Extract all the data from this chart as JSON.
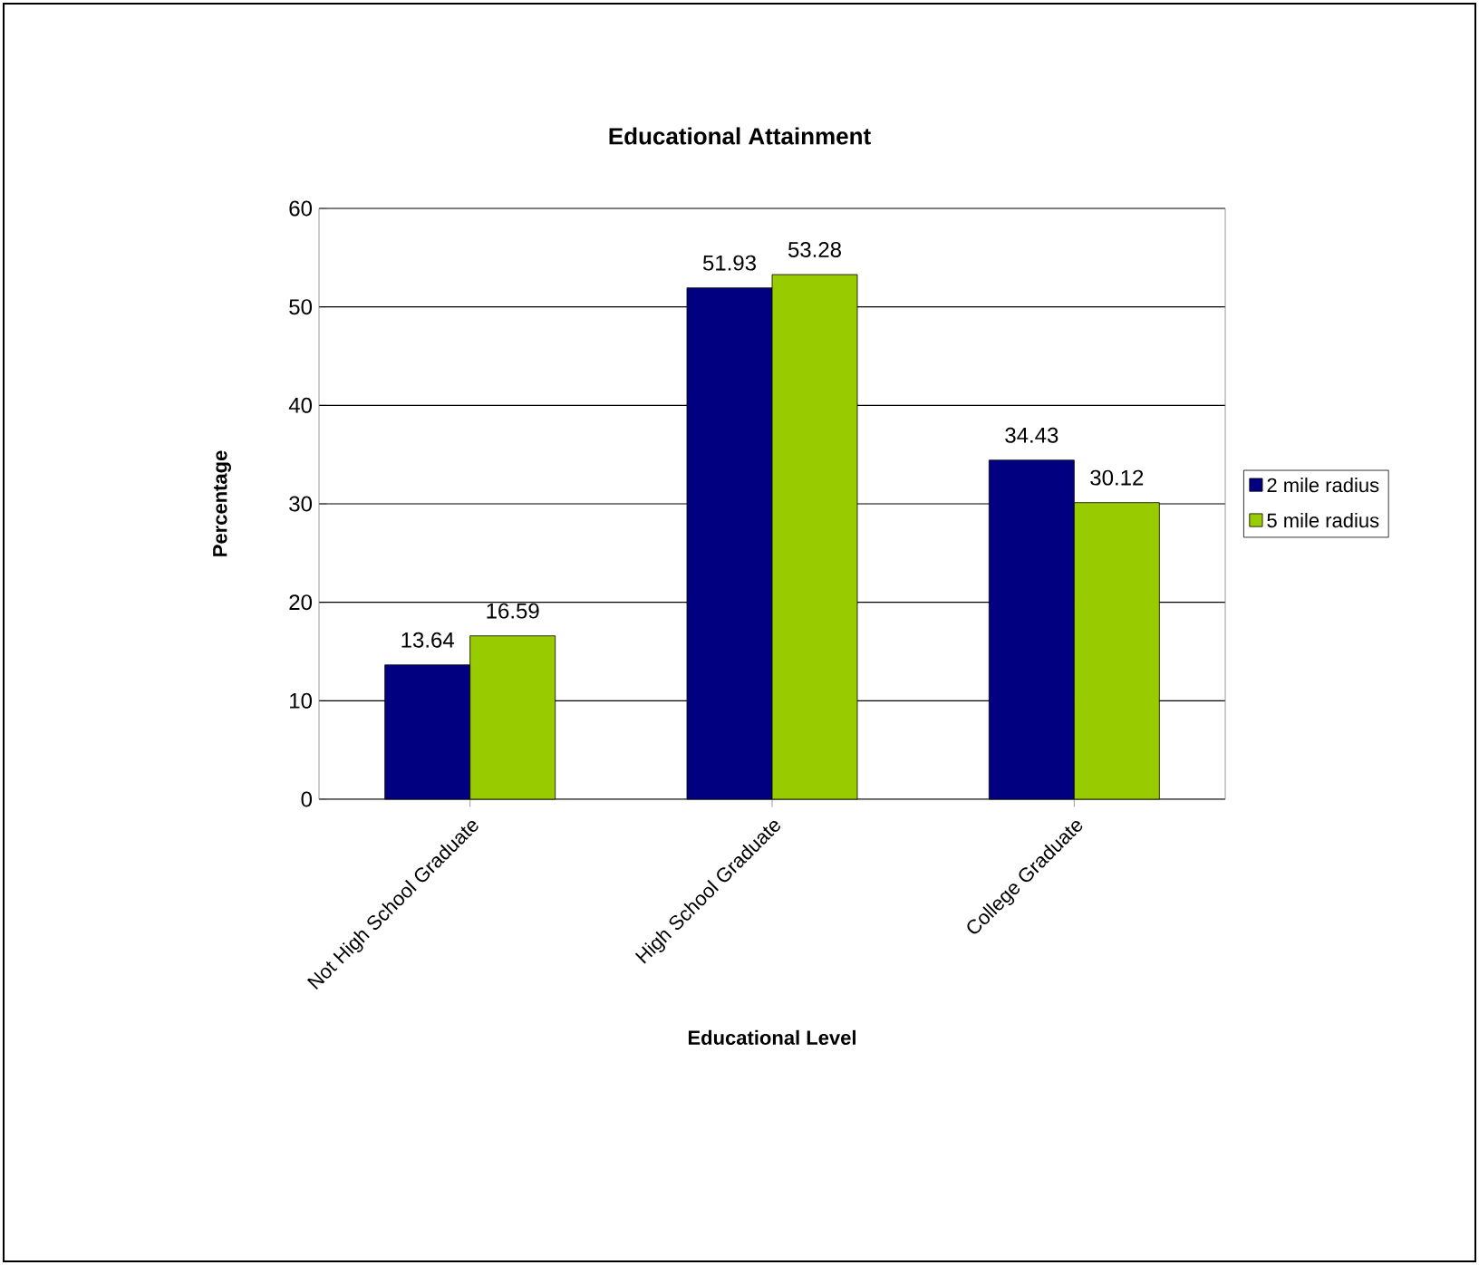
{
  "chart_data": {
    "type": "bar",
    "title": "Educational Attainment",
    "xlabel": "Educational Level",
    "ylabel": "Percentage",
    "categories": [
      "Not High School Graduate",
      "High School Graduate",
      "College Graduate"
    ],
    "series": [
      {
        "name": "2 mile radius",
        "color": "#000080",
        "values": [
          13.64,
          51.93,
          34.43
        ]
      },
      {
        "name": "5 mile radius",
        "color": "#99cc00",
        "values": [
          16.59,
          53.28,
          30.12
        ]
      }
    ],
    "ylim": [
      0,
      60
    ],
    "yticks": [
      0,
      10,
      20,
      30,
      40,
      50,
      60
    ],
    "grid": "y",
    "legend": "right",
    "data_labels": true
  }
}
